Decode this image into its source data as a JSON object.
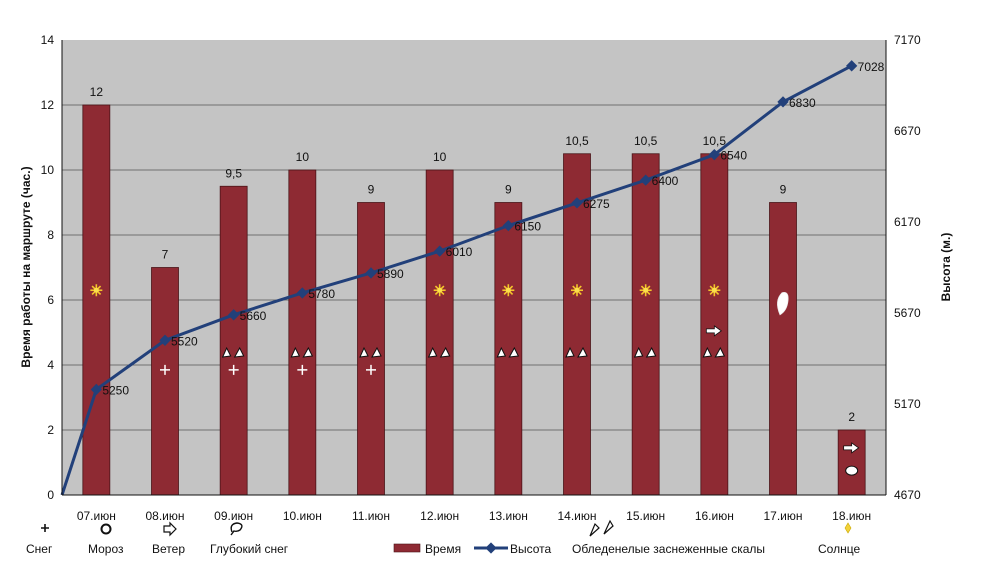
{
  "chart_data": {
    "type": "bar",
    "categories": [
      "07.июн",
      "08.июн",
      "09.июн",
      "10.июн",
      "11.июн",
      "12.июн",
      "13.июн",
      "14.июн",
      "15.июн",
      "16.июн",
      "17.июн",
      "18.июн"
    ],
    "series": [
      {
        "name": "Время",
        "type": "bar",
        "axis": "left",
        "color": "#8e2a33",
        "values": [
          12,
          7,
          9.5,
          10,
          9,
          10,
          9,
          10.5,
          10.5,
          10.5,
          9,
          2
        ],
        "labels": [
          "12",
          "7",
          "9,5",
          "10",
          "9",
          "10",
          "9",
          "10,5",
          "10,5",
          "10,5",
          "9",
          "2"
        ]
      },
      {
        "name": "Высота",
        "type": "line",
        "axis": "right",
        "color": "#22407a",
        "values": [
          5250,
          5520,
          5660,
          5780,
          5890,
          6010,
          6150,
          6275,
          6400,
          6540,
          6830,
          7028
        ],
        "labels": [
          "5250",
          "5520",
          "5660",
          "5780",
          "5890",
          "6010",
          "6150",
          "6275",
          "6400",
          "6540",
          "6830",
          "7028"
        ]
      }
    ],
    "ylabel": "Время работы на маршруте (час.)",
    "y2label": "Высота (м.)",
    "ylim": [
      0,
      14
    ],
    "y2lim": [
      4670,
      7170
    ],
    "yticks": [
      "0",
      "2",
      "4",
      "6",
      "8",
      "10",
      "12",
      "14"
    ],
    "y2ticks": [
      "4670",
      "5170",
      "5670",
      "6170",
      "6670",
      "7170"
    ],
    "grid": true,
    "legend": {
      "placement": "bottom",
      "items": [
        "Снег",
        "Мороз",
        "Ветер",
        "Глубокий снег",
        "Время",
        "Высота",
        "Обледенелые заснеженные скалы",
        "Солнце"
      ]
    }
  }
}
